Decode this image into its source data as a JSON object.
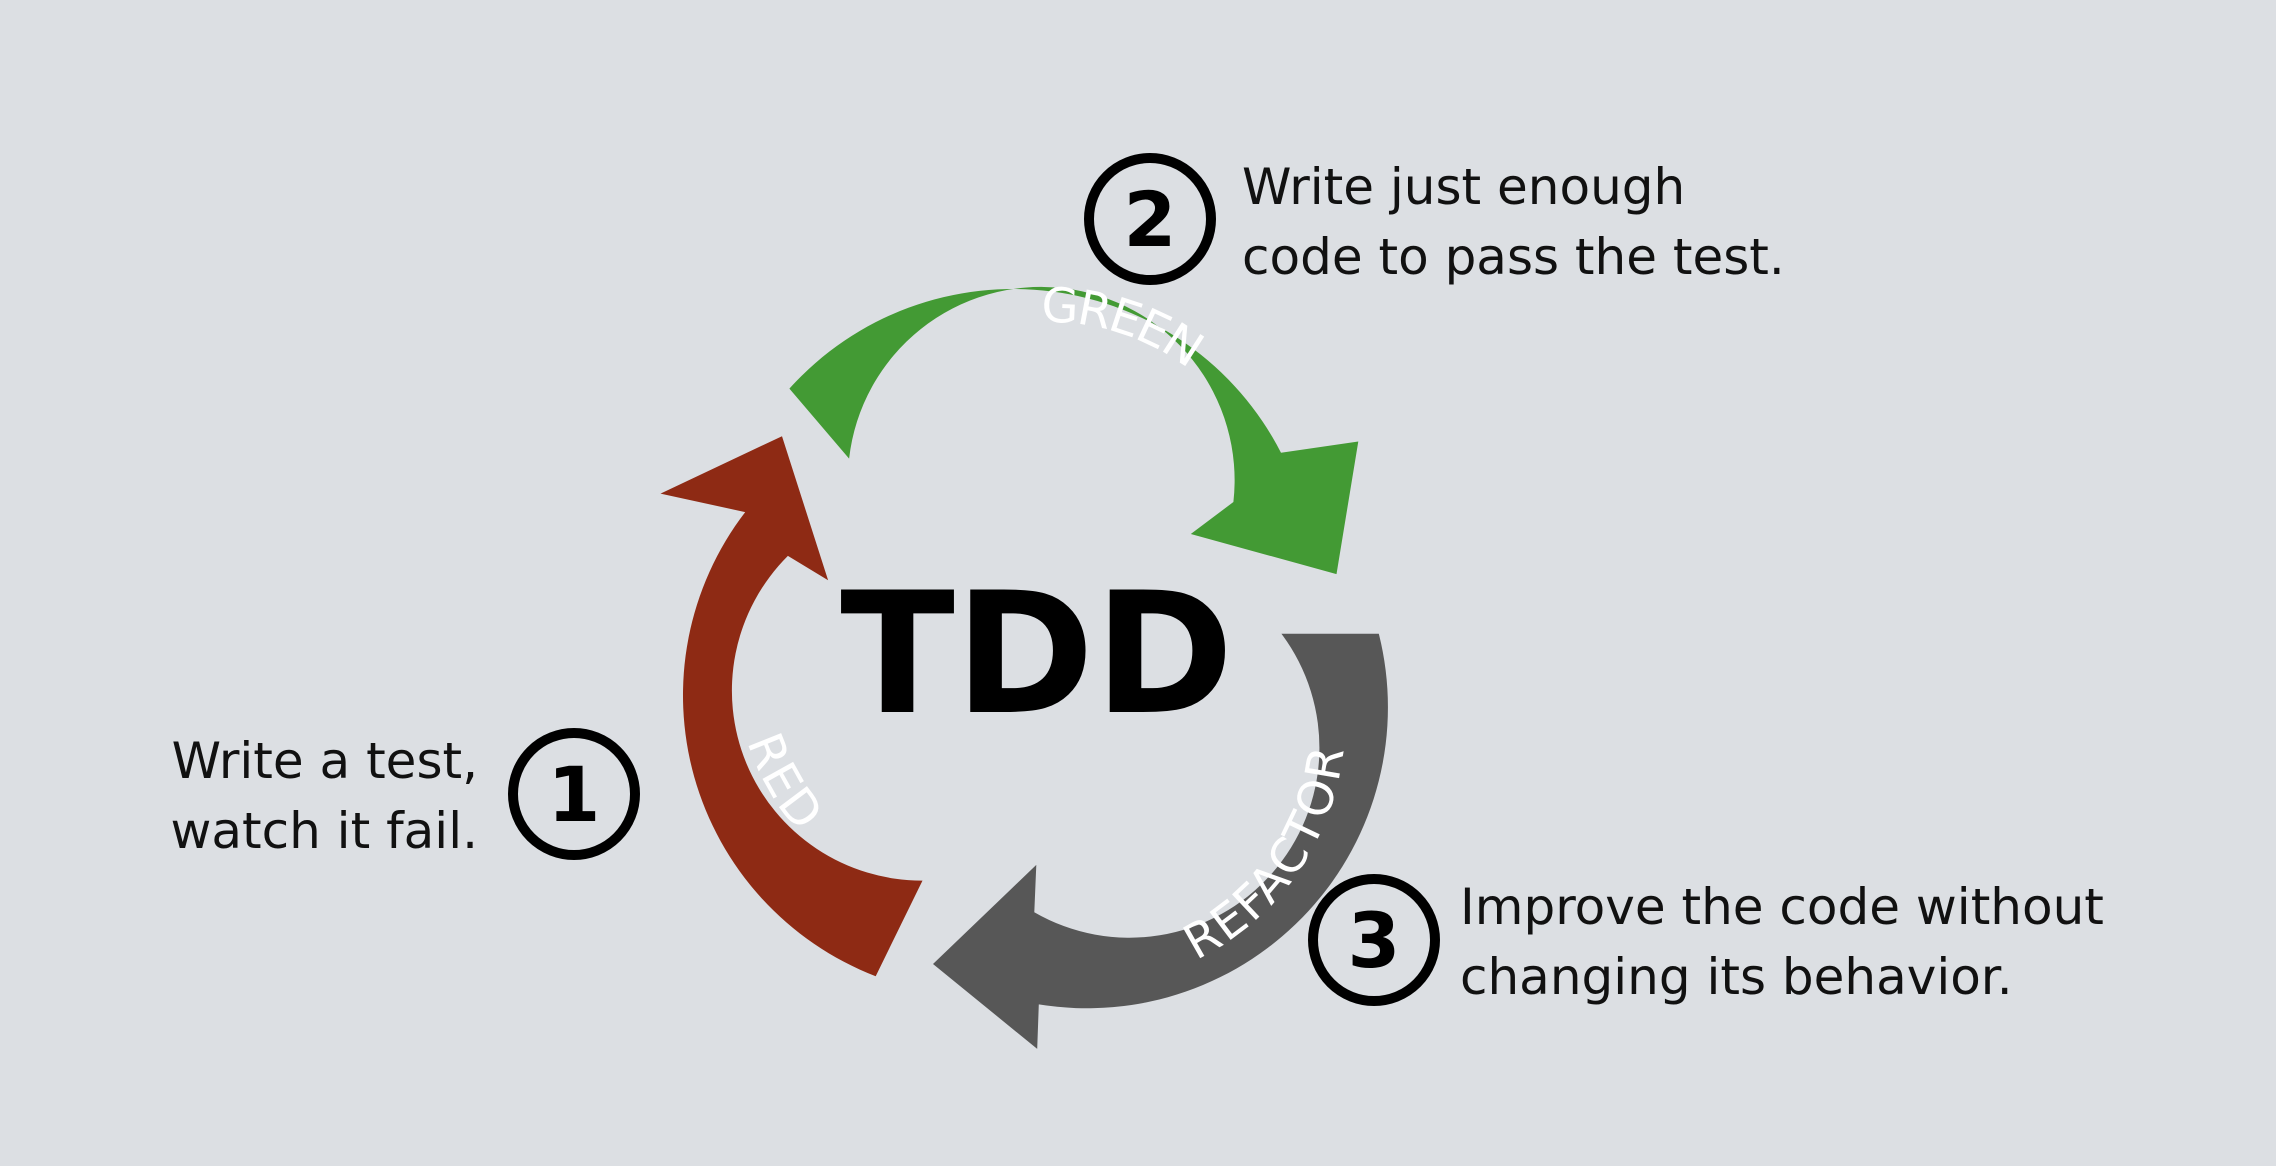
{
  "center": {
    "title": "TDD"
  },
  "cycle": [
    {
      "label": "RED",
      "color": "#8e2a14"
    },
    {
      "label": "GREEN",
      "color": "#439a34"
    },
    {
      "label": "REFACTOR",
      "color": "#575757"
    }
  ],
  "steps": [
    {
      "number": "1",
      "lines": [
        "Write a test,",
        "watch it fail."
      ]
    },
    {
      "number": "2",
      "lines": [
        "Write just enough",
        "code to pass the test."
      ]
    },
    {
      "number": "3",
      "lines": [
        "Improve the code without",
        "changing its behavior."
      ]
    }
  ]
}
